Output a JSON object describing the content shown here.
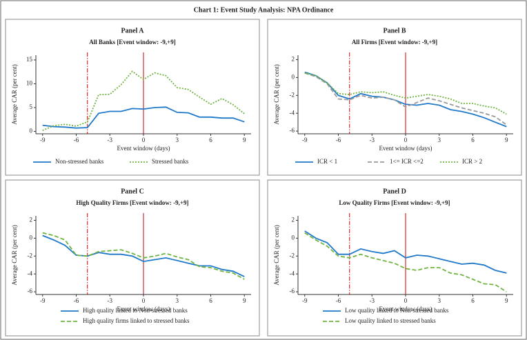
{
  "title": "Chart 1: Event Study Analysis: NPA Ordinance",
  "chart_data": [
    {
      "type": "line",
      "panel": "Panel A",
      "title": "All Banks [Event window: -9,+9]",
      "xlabel": "Event window (days)",
      "ylabel": "Average CAR (per cent)",
      "x": [
        -9,
        -8,
        -7,
        -6,
        -5,
        -4,
        -3,
        -2,
        -1,
        0,
        1,
        2,
        3,
        4,
        5,
        6,
        7,
        8,
        9
      ],
      "xlim": [
        -9.6,
        9.6
      ],
      "xticks": [
        -9,
        -6,
        -3,
        0,
        3,
        6,
        9
      ],
      "ylim": [
        -0.5,
        16
      ],
      "yticks": [
        0,
        5,
        10,
        15
      ],
      "event_lines": [
        {
          "x": -5,
          "style": "dashdot"
        },
        {
          "x": 0,
          "style": "solid"
        }
      ],
      "event_line_color": "#cc0000",
      "legend_columns": 2,
      "series": [
        {
          "name": "Non-stressed banks",
          "color": "#1f78c8",
          "style": "solid",
          "values": [
            1.3,
            1.0,
            0.9,
            0.7,
            0.8,
            3.8,
            4.2,
            4.2,
            4.8,
            4.7,
            5.0,
            5.1,
            4.0,
            3.9,
            3.0,
            3.0,
            2.8,
            2.8,
            2.0
          ]
        },
        {
          "name": "Stressed banks",
          "color": "#6fb43f",
          "style": "dotted",
          "values": [
            0.2,
            1.2,
            1.5,
            1.1,
            2.0,
            7.7,
            7.8,
            9.8,
            12.6,
            10.9,
            12.3,
            11.7,
            9.2,
            8.8,
            7.2,
            5.7,
            6.9,
            5.6,
            3.7
          ]
        }
      ]
    },
    {
      "type": "line",
      "panel": "Panel B",
      "title": "All Firms [Event window: -9,+9]",
      "xlabel": "Event window (days)",
      "ylabel": "Average CAR (per cent)",
      "x": [
        -9,
        -8,
        -7,
        -6,
        -5,
        -4,
        -3,
        -2,
        -1,
        0,
        1,
        2,
        3,
        4,
        5,
        6,
        7,
        8,
        9
      ],
      "xlim": [
        -9.6,
        9.6
      ],
      "xticks": [
        -9,
        -6,
        -3,
        0,
        3,
        6,
        9
      ],
      "ylim": [
        -6.3,
        2.5
      ],
      "yticks": [
        -6,
        -4,
        -2,
        0,
        2
      ],
      "event_lines": [
        {
          "x": -5,
          "style": "dashdot"
        },
        {
          "x": 0,
          "style": "solid"
        }
      ],
      "event_line_color": "#cc0000",
      "legend_columns": 3,
      "series": [
        {
          "name": "ICR < 1",
          "color": "#1f78c8",
          "style": "solid",
          "values": [
            0.6,
            0.2,
            -0.6,
            -2.0,
            -2.4,
            -1.8,
            -2.1,
            -2.2,
            -2.5,
            -3.0,
            -3.1,
            -2.9,
            -3.1,
            -3.6,
            -3.8,
            -4.1,
            -4.5,
            -5.0,
            -5.5
          ]
        },
        {
          "name": "1<= ICR <=2",
          "color": "#999999",
          "style": "dashed",
          "values": [
            0.5,
            0.1,
            -0.7,
            -2.4,
            -2.5,
            -2.0,
            -2.3,
            -2.2,
            -2.5,
            -3.3,
            -2.8,
            -2.3,
            -2.6,
            -3.0,
            -3.4,
            -3.7,
            -4.0,
            -4.4,
            -5.3
          ]
        },
        {
          "name": "ICR > 2",
          "color": "#6fb43f",
          "style": "dotted",
          "values": [
            0.5,
            0.2,
            -0.6,
            -1.8,
            -1.9,
            -1.6,
            -1.7,
            -1.6,
            -2.0,
            -2.3,
            -2.1,
            -1.9,
            -2.1,
            -2.4,
            -2.9,
            -2.9,
            -3.2,
            -3.4,
            -4.1
          ]
        }
      ]
    },
    {
      "type": "line",
      "panel": "Panel C",
      "title": "High Quality Firms [Event window: -9,+9]",
      "xlabel": "Event window (days)",
      "ylabel": "Average CAR (per cent)",
      "x": [
        -9,
        -8,
        -7,
        -6,
        -5,
        -4,
        -3,
        -2,
        -1,
        0,
        1,
        2,
        3,
        4,
        5,
        6,
        7,
        8,
        9
      ],
      "xlim": [
        -9.6,
        9.6
      ],
      "xticks": [
        -9,
        -6,
        -3,
        0,
        3,
        6,
        9
      ],
      "ylim": [
        -6.3,
        2.5
      ],
      "yticks": [
        -6,
        -4,
        -2,
        0,
        2
      ],
      "event_lines": [
        {
          "x": -5,
          "style": "dashdot"
        },
        {
          "x": 0,
          "style": "solid"
        }
      ],
      "event_line_color": "#cc0000",
      "legend_columns": 1,
      "series": [
        {
          "name": "High quality linked to Non-stressed banks",
          "color": "#1f78c8",
          "style": "solid",
          "values": [
            0.3,
            -0.2,
            -0.8,
            -1.9,
            -2.0,
            -1.6,
            -1.8,
            -1.8,
            -2.0,
            -2.6,
            -2.4,
            -2.2,
            -2.5,
            -2.8,
            -3.1,
            -3.1,
            -3.5,
            -3.7,
            -4.3
          ]
        },
        {
          "name": "High quality firms linked to stressed banks",
          "color": "#6fb43f",
          "style": "dashed",
          "values": [
            0.6,
            0.3,
            -0.2,
            -1.9,
            -2.0,
            -1.5,
            -1.4,
            -1.3,
            -1.7,
            -2.2,
            -2.0,
            -1.7,
            -2.1,
            -2.4,
            -3.2,
            -3.3,
            -3.7,
            -3.9,
            -4.6
          ]
        }
      ]
    },
    {
      "type": "line",
      "panel": "Panel D",
      "title": "Low Quality Firms [Event window: -9,+9]",
      "xlabel": "Event window (days)",
      "ylabel": "Average CAR (per cent)",
      "x": [
        -9,
        -8,
        -7,
        -6,
        -5,
        -4,
        -3,
        -2,
        -1,
        0,
        1,
        2,
        3,
        4,
        5,
        6,
        7,
        8,
        9
      ],
      "xlim": [
        -9.6,
        9.6
      ],
      "xticks": [
        -9,
        -6,
        -3,
        0,
        3,
        6,
        9
      ],
      "ylim": [
        -6.3,
        2.5
      ],
      "yticks": [
        -6,
        -4,
        -2,
        0,
        2
      ],
      "event_lines": [
        {
          "x": -5,
          "style": "dashdot"
        },
        {
          "x": 0,
          "style": "solid"
        }
      ],
      "event_line_color": "#cc0000",
      "legend_columns": 1,
      "series": [
        {
          "name": "Low quality linked to Non-stressed banks",
          "color": "#1f78c8",
          "style": "solid",
          "values": [
            0.8,
            0.0,
            -0.5,
            -1.8,
            -1.8,
            -1.2,
            -1.5,
            -1.7,
            -1.4,
            -2.2,
            -1.9,
            -2.0,
            -2.3,
            -2.6,
            -2.9,
            -2.8,
            -3.0,
            -3.6,
            -3.9
          ]
        },
        {
          "name": "Low quality linked to stressed banks",
          "color": "#6fb43f",
          "style": "dashed",
          "values": [
            0.6,
            -0.2,
            -0.9,
            -2.0,
            -2.2,
            -1.8,
            -2.2,
            -2.5,
            -2.8,
            -3.4,
            -3.6,
            -3.3,
            -3.3,
            -3.9,
            -4.1,
            -4.6,
            -5.1,
            -5.2,
            -6.0
          ]
        }
      ]
    }
  ]
}
